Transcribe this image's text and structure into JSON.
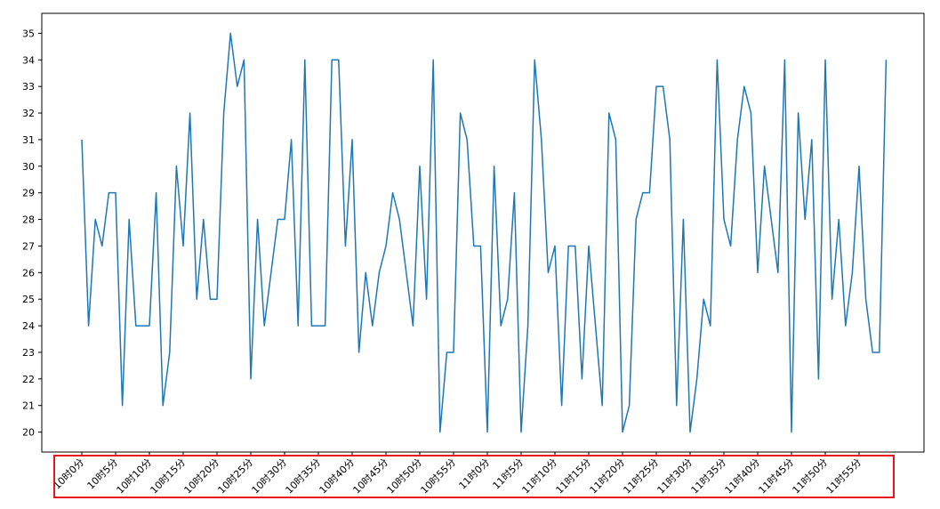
{
  "colors": {
    "line": "#1f77b4",
    "axes": "#000000",
    "highlight_box": "#e8141e"
  },
  "chart_data": {
    "type": "line",
    "title": "",
    "xlabel": "",
    "ylabel": "",
    "grid": false,
    "ylim": [
      19.25,
      35.75
    ],
    "yticks": [
      20,
      21,
      22,
      23,
      24,
      25,
      26,
      27,
      28,
      29,
      30,
      31,
      32,
      33,
      34,
      35
    ],
    "x_tick_labels": [
      "10时0分",
      "10时5分",
      "10时10分",
      "10时15分",
      "10时20分",
      "10时25分",
      "10时30分",
      "10时35分",
      "10时40分",
      "10时45分",
      "10时50分",
      "10时55分",
      "11时0分",
      "11时5分",
      "11时10分",
      "11时15分",
      "11时20分",
      "11时25分",
      "11时30分",
      "11时35分",
      "11时40分",
      "11时45分",
      "11时50分",
      "11时55分"
    ],
    "annotation": "highlight-box-around-x-tick-labels",
    "series": [
      {
        "values": [
          31,
          24,
          28,
          27,
          29,
          29,
          21,
          28,
          24,
          24,
          24,
          29,
          21,
          23,
          30,
          27,
          32,
          25,
          28,
          25,
          25,
          32,
          35,
          33,
          34,
          22,
          28,
          24,
          26,
          28,
          28,
          31,
          24,
          34,
          24,
          24,
          24,
          34,
          34,
          27,
          31,
          23,
          26,
          24,
          26,
          27,
          29,
          28,
          26,
          24,
          30,
          25,
          34,
          20,
          23,
          23,
          32,
          31,
          27,
          27,
          20,
          30,
          24,
          25,
          29,
          20,
          24,
          34,
          31,
          26,
          27,
          21,
          27,
          27,
          22,
          27,
          24,
          21,
          32,
          31,
          20,
          21,
          28,
          29,
          29,
          33,
          33,
          31,
          21,
          28,
          20,
          22,
          25,
          24,
          34,
          28,
          27,
          31,
          33,
          32,
          26,
          30,
          28,
          26,
          34,
          20,
          32,
          28,
          31,
          22,
          34,
          25,
          28,
          24,
          26,
          30,
          25,
          23,
          23,
          34
        ]
      }
    ]
  }
}
